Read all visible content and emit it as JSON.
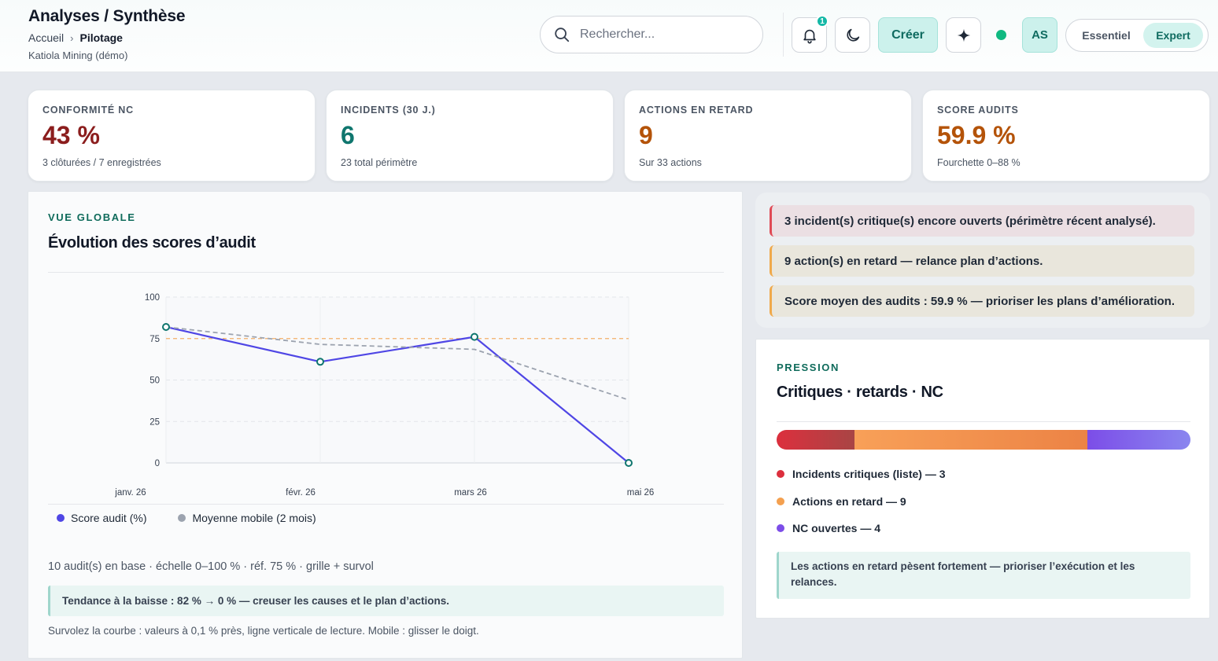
{
  "header": {
    "title": "Analyses / Synthèse",
    "breadcrumb": [
      "Accueil",
      "Pilotage"
    ],
    "organization": "Katiola Mining (démo)",
    "search_placeholder": "Rechercher...",
    "notification_count": "1",
    "create_label": "Créer",
    "avatar_initials": "AS",
    "modes": [
      "Essentiel",
      "Expert"
    ],
    "active_mode": "Expert",
    "icons": [
      "search-icon",
      "bell-icon",
      "moon-icon",
      "sparkle-icon"
    ]
  },
  "kpis": [
    {
      "label": "CONFORMITÉ NC",
      "value": "43 %",
      "sub": "3 clôturées / 7 enregistrées",
      "color": "#8b1d1d"
    },
    {
      "label": "INCIDENTS (30 J.)",
      "value": "6",
      "sub": "23 total périmètre",
      "color": "#0f766e"
    },
    {
      "label": "ACTIONS EN RETARD",
      "value": "9",
      "sub": "Sur 33 actions",
      "color": "#b45309"
    },
    {
      "label": "SCORE AUDITS",
      "value": "59.9 %",
      "sub": "Fourchette 0–88 %",
      "color": "#b45309"
    }
  ],
  "chart_card": {
    "eyebrow": "VUE GLOBALE",
    "title": "Évolution des scores d’audit",
    "meta": "10 audit(s) en base · échelle 0–100 % · réf. 75 % · grille + survol",
    "trend": "Tendance à la baisse : 82 % → 0 % — creuser les causes et le plan d’actions.",
    "hint": "Survolez la courbe : valeurs à 0,1 % près, ligne verticale de lecture. Mobile : glisser le doigt."
  },
  "chart_data": {
    "type": "line",
    "x": [
      "janv. 26",
      "févr. 26",
      "mars 26",
      "mai 26"
    ],
    "series": [
      {
        "name": "Score audit (%)",
        "values": [
          82,
          61,
          76,
          0
        ],
        "color": "#4f46e5"
      },
      {
        "name": "Moyenne mobile (2 mois)",
        "values": [
          82,
          71.5,
          68.5,
          38
        ],
        "color": "#9ca3af",
        "dashed": true
      }
    ],
    "reference": {
      "value": 75,
      "color": "#f5b06a"
    },
    "ylim": [
      0,
      100
    ],
    "yticks": [
      0,
      25,
      50,
      75,
      100
    ],
    "grid": true,
    "legend": "bottom-left",
    "xlabel": "",
    "ylabel": "",
    "title": ""
  },
  "alerts": [
    {
      "text": "3 incident(s) critique(s) encore ouverts (périmètre récent analysé).",
      "level": "critical"
    },
    {
      "text": "9 action(s) en retard — relance plan d’actions.",
      "level": "warning"
    },
    {
      "text": "Score moyen des audits : 59.9 % — prioriser les plans d’amélioration.",
      "level": "warning"
    }
  ],
  "pressure": {
    "eyebrow": "PRESSION",
    "title": "Critiques · retards · NC",
    "segments": [
      {
        "label": "Incidents critiques (liste) — 3",
        "value": 3,
        "color": "#dc2f3d"
      },
      {
        "label": "Actions en retard — 9",
        "value": 9,
        "color": "#f4a04f"
      },
      {
        "label": "NC ouvertes — 4",
        "value": 4,
        "color": "#7c4de8"
      }
    ],
    "note": "Les actions en retard pèsent fortement — prioriser l’exécution et les relances."
  }
}
